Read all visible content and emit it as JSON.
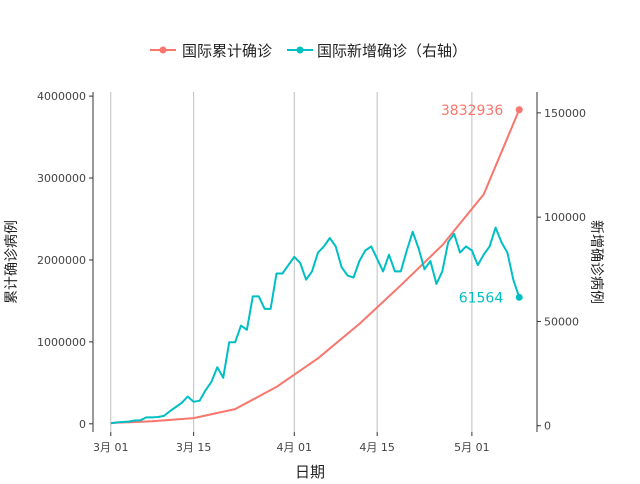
{
  "chart_data": {
    "type": "line",
    "xlabel": "日期",
    "ylabel_left": "累计确诊病例",
    "ylabel_right": "新增确诊病例",
    "x_ticks": [
      "3月 01",
      "3月 15",
      "4月 01",
      "4月 15",
      "5月 01"
    ],
    "y_left_ticks": [
      "0",
      "1000000",
      "2000000",
      "3000000",
      "4000000"
    ],
    "y_right_ticks": [
      "0",
      "50000",
      "100000",
      "150000"
    ],
    "y_left_range": [
      -100000,
      4050000
    ],
    "y_right_range": [
      -3000,
      160000
    ],
    "x_range_days": [
      -3,
      72
    ],
    "grid": "vertical major lines at x ticks",
    "legend_position": "top",
    "colors": {
      "cumulative": "#F8766D",
      "new": "#00BFC4",
      "grid": "#BEBEBE",
      "axis": "#333333"
    },
    "series": [
      {
        "name": "国际累计确诊",
        "axis": "left",
        "color": "#F8766D",
        "x_day": [
          0,
          7,
          14,
          21,
          28,
          35,
          42,
          49,
          56,
          63,
          69
        ],
        "values": [
          10000,
          30000,
          70000,
          180000,
          450000,
          800000,
          1220000,
          1690000,
          2180000,
          2800000,
          3832936
        ],
        "end_label": "3832936"
      },
      {
        "name": "国际新增确诊（右轴）",
        "axis": "right",
        "color": "#00BFC4",
        "x_day": [
          0,
          1,
          2,
          3,
          4,
          5,
          6,
          7,
          8,
          9,
          10,
          11,
          12,
          13,
          14,
          15,
          16,
          17,
          18,
          19,
          20,
          21,
          22,
          23,
          24,
          25,
          26,
          27,
          28,
          29,
          30,
          31,
          32,
          33,
          34,
          35,
          36,
          37,
          38,
          39,
          40,
          41,
          42,
          43,
          44,
          45,
          46,
          47,
          48,
          49,
          50,
          51,
          52,
          53,
          54,
          55,
          56,
          57,
          58,
          59,
          60,
          61,
          62,
          63,
          64,
          65,
          66,
          67,
          68,
          69
        ],
        "values": [
          1200,
          1600,
          1800,
          2000,
          2500,
          2600,
          4000,
          4000,
          4200,
          4700,
          7000,
          9000,
          11000,
          14000,
          11500,
          12000,
          17000,
          21000,
          28000,
          23000,
          40000,
          40000,
          48000,
          46000,
          62000,
          62000,
          56000,
          56000,
          73000,
          73000,
          77000,
          81000,
          78000,
          70000,
          74000,
          83000,
          86000,
          90000,
          86000,
          76000,
          72000,
          71000,
          79000,
          84000,
          86000,
          80000,
          74000,
          82000,
          74000,
          74000,
          84000,
          93000,
          85000,
          75000,
          79000,
          68000,
          74000,
          88000,
          92000,
          83000,
          86000,
          84000,
          77000,
          82000,
          86000,
          95000,
          88000,
          83000,
          70000,
          61564
        ],
        "end_label": "61564"
      }
    ]
  }
}
